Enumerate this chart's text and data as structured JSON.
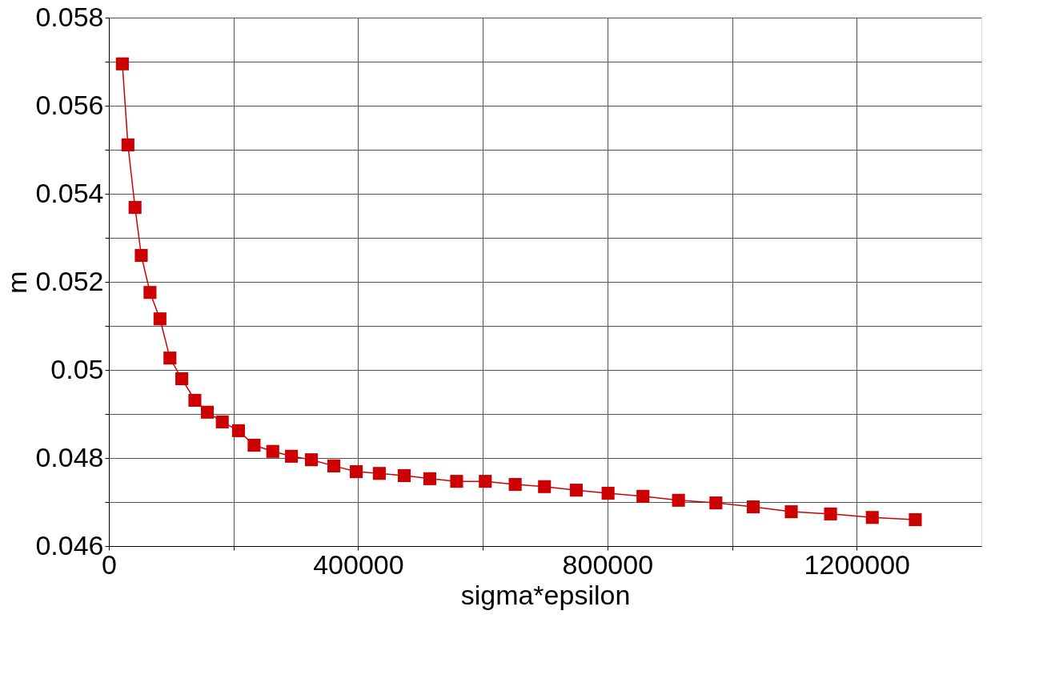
{
  "chart_data": {
    "type": "line",
    "xlabel": "sigma*epsilon",
    "ylabel": "m",
    "xlim": [
      0,
      1400000
    ],
    "xticks": [
      0,
      {
        "value": 200000,
        "label": null
      },
      400000,
      {
        "value": 600000,
        "label": null
      },
      800000,
      {
        "value": 1000000,
        "label": null
      },
      1200000
    ],
    "ylim": [
      0.046,
      0.058
    ],
    "yticks": [
      0.046,
      {
        "value": 0.047,
        "label": null
      },
      0.048,
      {
        "value": 0.049,
        "label": null
      },
      0.05,
      {
        "value": 0.051,
        "label": null
      },
      0.052,
      {
        "value": 0.053,
        "label": null
      },
      0.054,
      {
        "value": 0.055,
        "label": null
      },
      0.056,
      {
        "value": 0.057,
        "label": null
      },
      0.058
    ],
    "grid": true,
    "marker": "square",
    "line_style": "solid",
    "series": [
      {
        "color": "#cc0000",
        "x": [
          21700,
          30600,
          42000,
          52000,
          66000,
          82000,
          98000,
          117000,
          138000,
          158000,
          182000,
          208000,
          233000,
          263000,
          293000,
          325000,
          361000,
          397000,
          434000,
          474000,
          515000,
          558000,
          604000,
          652000,
          699000,
          750000,
          801000,
          857000,
          914000,
          974000,
          1034000,
          1095000,
          1158000,
          1225000,
          1294000
        ],
        "values": [
          0.05695,
          0.05511,
          0.05369,
          0.0526,
          0.05176,
          0.05116,
          0.05027,
          0.0498,
          0.04931,
          0.04904,
          0.04882,
          0.04862,
          0.04829,
          0.04815,
          0.04804,
          0.04796,
          0.04782,
          0.04769,
          0.04765,
          0.0476,
          0.04753,
          0.04747,
          0.04747,
          0.0474,
          0.04735,
          0.04727,
          0.0472,
          0.04713,
          0.04704,
          0.04698,
          0.04689,
          0.04678,
          0.04673,
          0.04665,
          0.0466
        ]
      }
    ]
  }
}
